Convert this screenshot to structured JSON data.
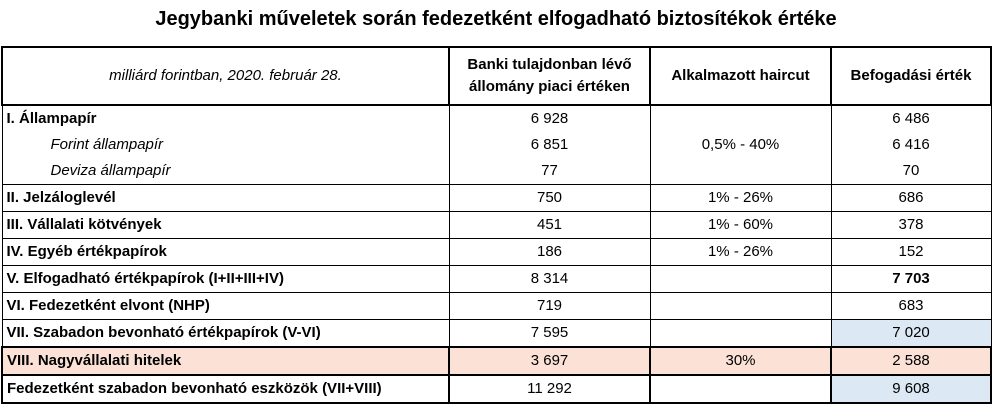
{
  "title": "Jegybanki műveletek során fedezetként elfogadható biztosítékok értéke",
  "header": {
    "unit": "milliárd forintban, 2020. február 28.",
    "col_market_line1": "Banki tulajdonban lévő",
    "col_market_line2": "állomány piaci értéken",
    "col_haircut": "Alkalmazott  haircut",
    "col_accept": "Befogadási érték"
  },
  "rows": [
    {
      "label": "I. Állampapír",
      "market": "6 928",
      "haircut": "",
      "accept": "6 486"
    },
    {
      "label": "Forint állampapír",
      "market": "6 851",
      "haircut": "0,5% - 40%",
      "accept": "6 416"
    },
    {
      "label": "Deviza állampapír",
      "market": "77",
      "haircut": "",
      "accept": "70"
    },
    {
      "label": "II. Jelzáloglevél",
      "market": "750",
      "haircut": "1% - 26%",
      "accept": "686"
    },
    {
      "label": "III. Vállalati kötvények",
      "market": "451",
      "haircut": "1% - 60%",
      "accept": "378"
    },
    {
      "label": "IV. Egyéb értékpapírok",
      "market": "186",
      "haircut": "1% - 26%",
      "accept": "152"
    },
    {
      "label": "V. Elfogadható értékpapírok (I+II+III+IV)",
      "market": "8 314",
      "haircut": "",
      "accept": "7 703"
    },
    {
      "label": "VI. Fedezetként elvont (NHP)",
      "market": "719",
      "haircut": "",
      "accept": "683"
    },
    {
      "label": "VII. Szabadon bevonható értékpapírok (V-VI)",
      "market": "7 595",
      "haircut": "",
      "accept": "7 020"
    },
    {
      "label": "VIII. Nagyvállalati hitelek",
      "market": "3 697",
      "haircut": "30%",
      "accept": "2 588"
    },
    {
      "label": "Fedezetként szabadon bevonható eszközök (VII+VIII)",
      "market": "11 292",
      "haircut": "",
      "accept": "9 608"
    }
  ],
  "colors": {
    "highlight_pink": "#fbe1d6",
    "highlight_blue": "#dce9f5"
  }
}
